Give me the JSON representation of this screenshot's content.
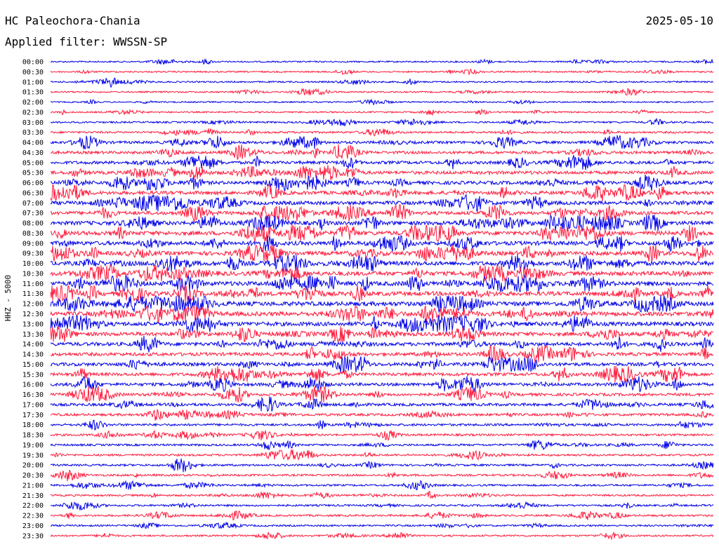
{
  "header": {
    "station": "HC Paleochora-Chania",
    "date": "2025-05-10",
    "filter": "Applied filter: WWSSN-SP"
  },
  "chart_data": {
    "type": "line",
    "title": "HC Paleochora-Chania",
    "ylabel": "HHZ - 5000",
    "trace_colors": [
      "#0000e6",
      "#ff1a3c"
    ],
    "rows": [
      {
        "label": "00:00",
        "activity": 0.5
      },
      {
        "label": "00:30",
        "activity": 0.5
      },
      {
        "label": "01:00",
        "activity": 0.5
      },
      {
        "label": "01:30",
        "activity": 0.5
      },
      {
        "label": "02:00",
        "activity": 0.4
      },
      {
        "label": "02:30",
        "activity": 0.5
      },
      {
        "label": "03:00",
        "activity": 0.7
      },
      {
        "label": "03:30",
        "activity": 0.9
      },
      {
        "label": "04:00",
        "activity": 1.4
      },
      {
        "label": "04:30",
        "activity": 1.5
      },
      {
        "label": "05:00",
        "activity": 1.7
      },
      {
        "label": "05:30",
        "activity": 1.9
      },
      {
        "label": "06:00",
        "activity": 2.0
      },
      {
        "label": "06:30",
        "activity": 2.1
      },
      {
        "label": "07:00",
        "activity": 2.2
      },
      {
        "label": "07:30",
        "activity": 2.1
      },
      {
        "label": "08:00",
        "activity": 2.4
      },
      {
        "label": "08:30",
        "activity": 2.5
      },
      {
        "label": "09:00",
        "activity": 2.4
      },
      {
        "label": "09:30",
        "activity": 2.5
      },
      {
        "label": "10:00",
        "activity": 2.6
      },
      {
        "label": "10:30",
        "activity": 2.6
      },
      {
        "label": "11:00",
        "activity": 2.7
      },
      {
        "label": "11:30",
        "activity": 2.6
      },
      {
        "label": "12:00",
        "activity": 2.7
      },
      {
        "label": "12:30",
        "activity": 2.7
      },
      {
        "label": "13:00",
        "activity": 2.5
      },
      {
        "label": "13:30",
        "activity": 2.3
      },
      {
        "label": "14:00",
        "activity": 2.1
      },
      {
        "label": "14:30",
        "activity": 1.9
      },
      {
        "label": "15:00",
        "activity": 1.9
      },
      {
        "label": "15:30",
        "activity": 1.8
      },
      {
        "label": "16:00",
        "activity": 1.7
      },
      {
        "label": "16:30",
        "activity": 1.5
      },
      {
        "label": "17:00",
        "activity": 1.5
      },
      {
        "label": "17:30",
        "activity": 1.3
      },
      {
        "label": "18:00",
        "activity": 1.1
      },
      {
        "label": "18:30",
        "activity": 1.0
      },
      {
        "label": "19:00",
        "activity": 0.9
      },
      {
        "label": "19:30",
        "activity": 0.9
      },
      {
        "label": "20:00",
        "activity": 0.9
      },
      {
        "label": "20:30",
        "activity": 0.9
      },
      {
        "label": "21:00",
        "activity": 0.8
      },
      {
        "label": "21:30",
        "activity": 0.8
      },
      {
        "label": "22:00",
        "activity": 0.8
      },
      {
        "label": "22:30",
        "activity": 0.8
      },
      {
        "label": "23:00",
        "activity": 0.7
      },
      {
        "label": "23:30",
        "activity": 0.7
      }
    ]
  }
}
